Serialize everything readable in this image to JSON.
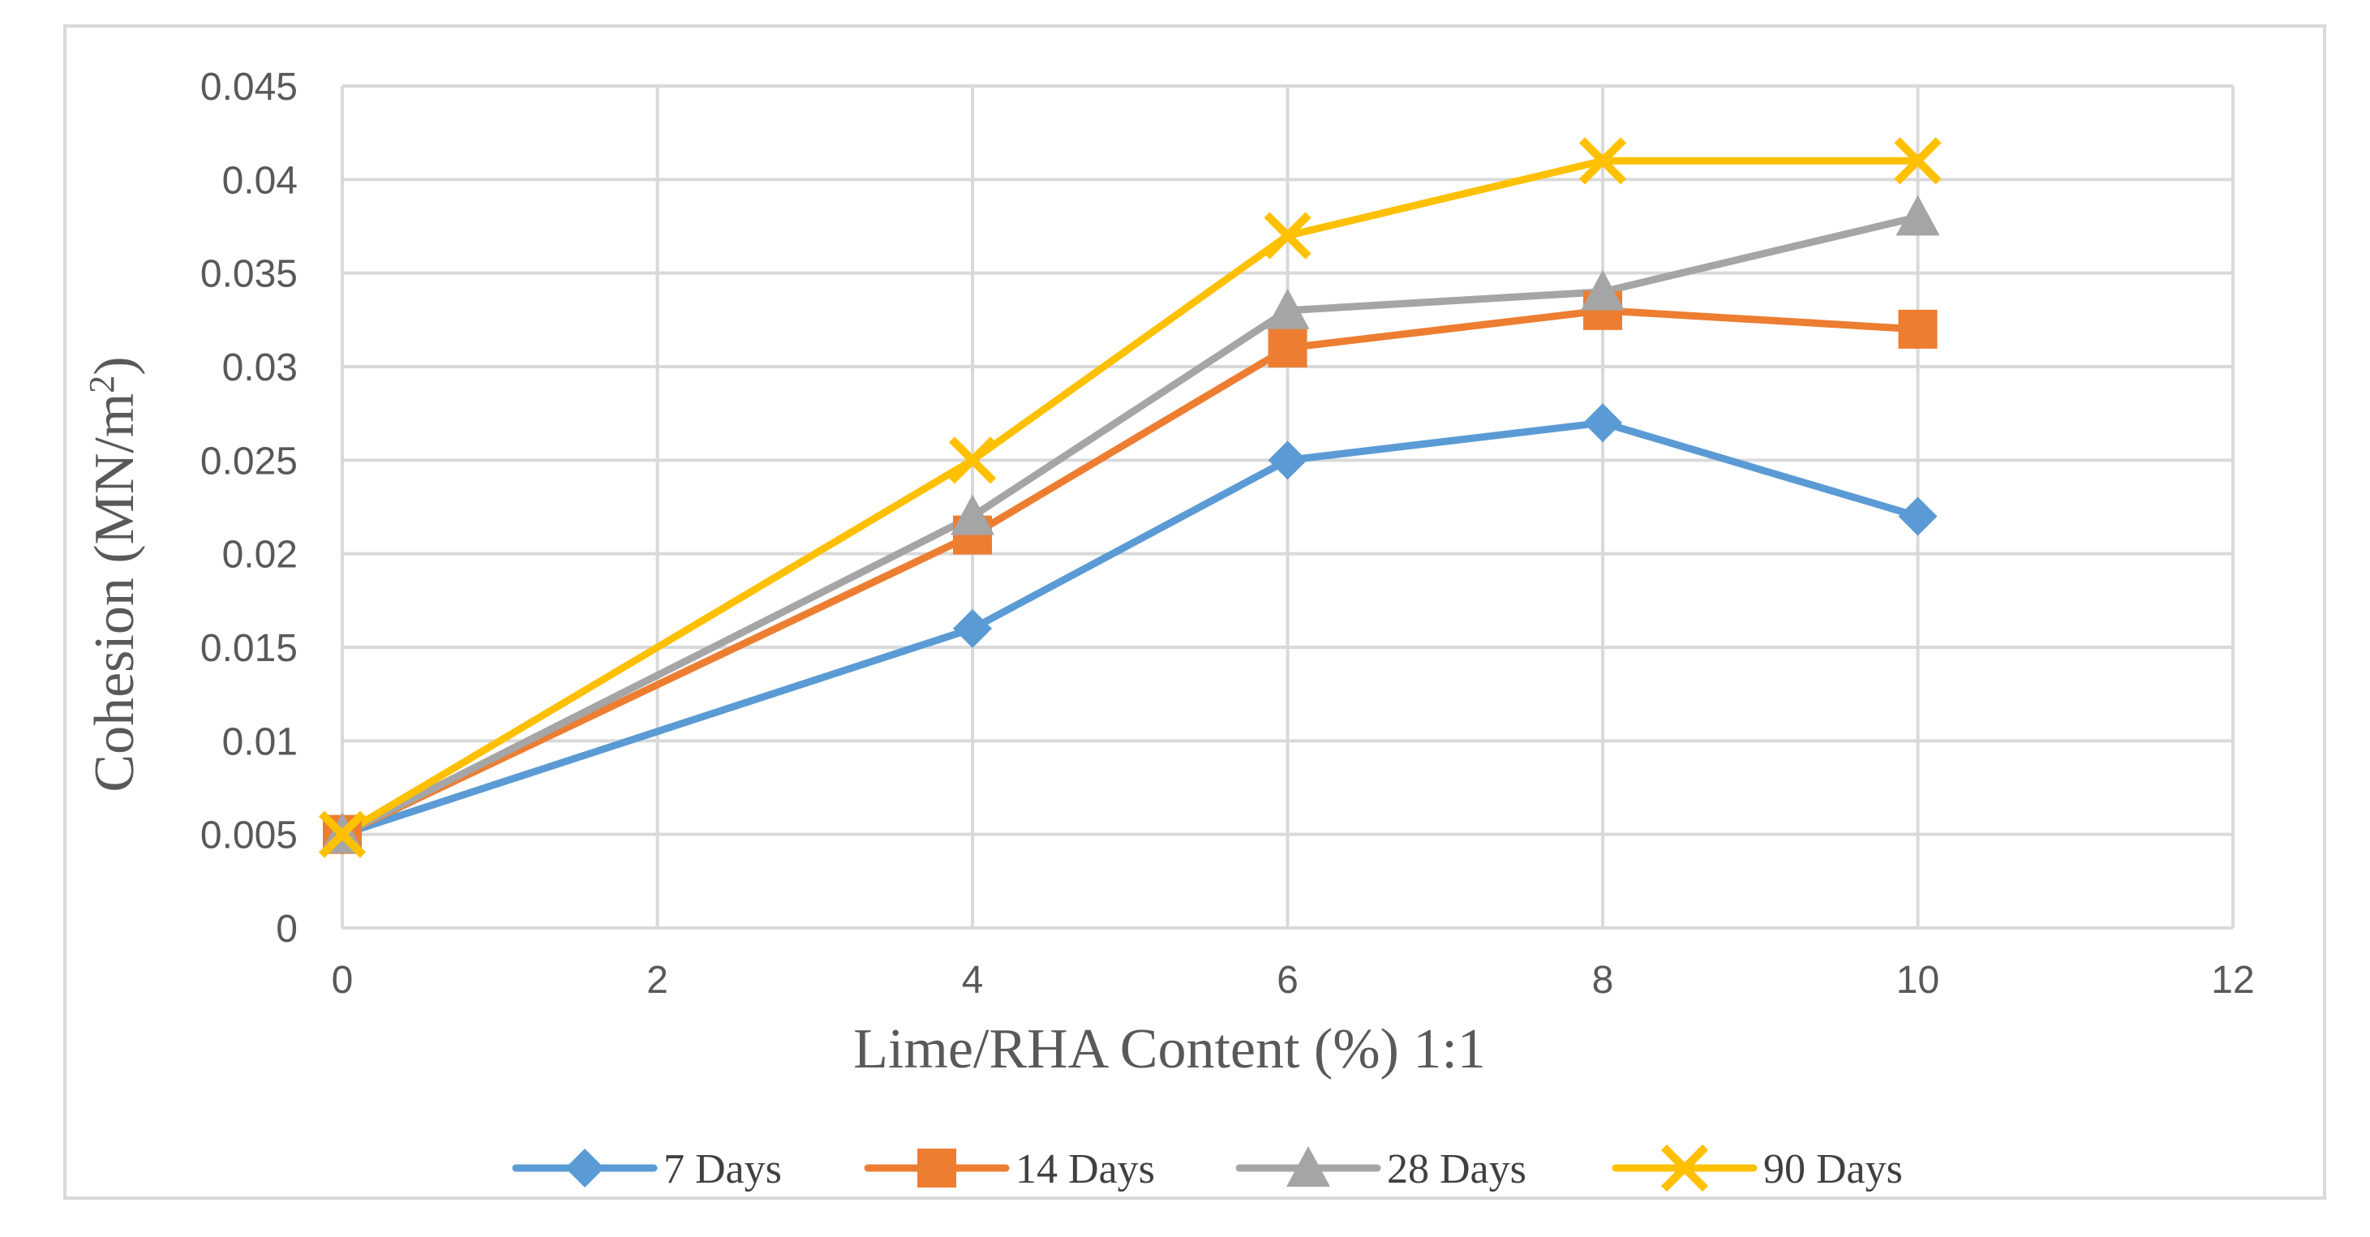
{
  "chart_data": {
    "type": "line",
    "title": "",
    "xlabel": "Lime/RHA Content (%) 1:1",
    "ylabel": "Cohesion (MN/m²)",
    "ylabel_main": "Cohesion (MN/m",
    "ylabel_sup": "2",
    "ylabel_end": ")",
    "xlim": [
      0,
      12
    ],
    "ylim": [
      0,
      0.045
    ],
    "x_ticks": [
      0,
      2,
      4,
      6,
      8,
      10,
      12
    ],
    "x_tick_labels": [
      "0",
      "2",
      "4",
      "6",
      "8",
      "10",
      "12"
    ],
    "y_ticks": [
      0,
      0.005,
      0.01,
      0.015,
      0.02,
      0.025,
      0.03,
      0.035,
      0.04,
      0.045
    ],
    "y_tick_labels": [
      "0",
      "0.005",
      "0.01",
      "0.015",
      "0.02",
      "0.025",
      "0.03",
      "0.035",
      "0.04",
      "0.045"
    ],
    "grid": true,
    "legend_position": "bottom",
    "x": [
      0,
      4,
      6,
      8,
      10
    ],
    "series": [
      {
        "name": "7 Days",
        "values": [
          0.005,
          0.016,
          0.025,
          0.027,
          0.022
        ],
        "color": "#5B9BD5",
        "marker": "diamond"
      },
      {
        "name": "14 Days",
        "values": [
          0.005,
          0.021,
          0.031,
          0.033,
          0.032
        ],
        "color": "#ED7D31",
        "marker": "square"
      },
      {
        "name": "28 Days",
        "values": [
          0.005,
          0.022,
          0.033,
          0.034,
          0.038
        ],
        "color": "#A5A5A5",
        "marker": "triangle"
      },
      {
        "name": "90 Days",
        "values": [
          0.005,
          0.025,
          0.037,
          0.041,
          0.041
        ],
        "color": "#FFC000",
        "marker": "x"
      }
    ]
  }
}
